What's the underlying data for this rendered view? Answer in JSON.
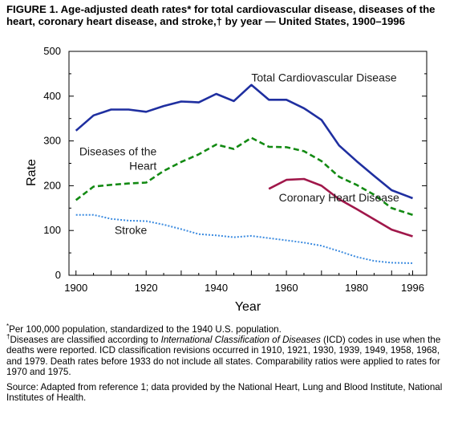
{
  "figure": {
    "title": "FIGURE 1. Age-adjusted death rates* for total cardiovascular disease, diseases of the heart, coronary heart disease, and stroke,† by year — United States, 1900–1996"
  },
  "footnotes": {
    "asterisk_mark": "*",
    "asterisk_text": "Per 100,000 population, standardized to the 1940 U.S. population.",
    "dagger_mark": "†",
    "dagger_text_before": "Diseases are classified according to ",
    "dagger_text_italic": "International Classification of Diseases",
    "dagger_text_after": " (ICD) codes in use when the deaths were reported. ICD classification revisions occurred in 1910, 1921, 1930, 1939, 1949, 1958, 1968, and 1979. Death rates before 1933 do not include all states. Comparability ratios were applied to rates for 1970 and 1975."
  },
  "source": "Source: Adapted from reference 1; data provided by the National Heart, Lung and Blood Institute, National Institutes of Health.",
  "chart_data": {
    "type": "line",
    "title": "",
    "xlabel": "Year",
    "ylabel": "Rate",
    "xlim": [
      1898,
      2000
    ],
    "ylim": [
      0,
      500
    ],
    "x_ticks": [
      1900,
      1920,
      1940,
      1960,
      1980,
      1996
    ],
    "y_ticks": [
      0,
      100,
      200,
      300,
      400,
      500
    ],
    "grid": false,
    "series": [
      {
        "name": "Total Cardiovascular Disease",
        "color": "#1f2fa0",
        "style": "solid",
        "x": [
          1900,
          1905,
          1910,
          1915,
          1920,
          1925,
          1930,
          1933,
          1935,
          1940,
          1945,
          1950,
          1955,
          1960,
          1965,
          1970,
          1975,
          1980,
          1985,
          1990,
          1996
        ],
        "y": [
          323,
          357,
          370,
          370,
          365,
          378,
          388,
          387,
          386,
          405,
          389,
          425,
          392,
          392,
          373,
          347,
          290,
          255,
          222,
          190,
          172
        ]
      },
      {
        "name": "Diseases of the Heart",
        "color": "#138a13",
        "style": "dashed",
        "x": [
          1900,
          1905,
          1910,
          1915,
          1920,
          1925,
          1930,
          1935,
          1940,
          1945,
          1950,
          1955,
          1960,
          1965,
          1970,
          1975,
          1980,
          1985,
          1990,
          1996
        ],
        "y": [
          168,
          198,
          202,
          205,
          207,
          233,
          253,
          270,
          292,
          282,
          307,
          287,
          286,
          277,
          255,
          220,
          202,
          180,
          150,
          135
        ]
      },
      {
        "name": "Coronary Heart Disease",
        "color": "#a0174a",
        "style": "solid",
        "x": [
          1955,
          1960,
          1965,
          1970,
          1975,
          1980,
          1985,
          1990,
          1996
        ],
        "y": [
          193,
          213,
          215,
          200,
          170,
          148,
          125,
          102,
          87
        ]
      },
      {
        "name": "Stroke",
        "color": "#3d8ce0",
        "style": "dotted",
        "x": [
          1900,
          1905,
          1910,
          1915,
          1920,
          1925,
          1930,
          1935,
          1940,
          1945,
          1950,
          1955,
          1960,
          1965,
          1970,
          1975,
          1980,
          1985,
          1990,
          1996
        ],
        "y": [
          135,
          135,
          126,
          122,
          121,
          113,
          103,
          92,
          89,
          85,
          88,
          83,
          78,
          73,
          66,
          54,
          41,
          32,
          28,
          27
        ]
      }
    ],
    "series_labels": [
      {
        "lines": [
          "Total Cardiovascular Disease"
        ],
        "anchor_year": 1950,
        "anchor_rate": 433,
        "align": "start"
      },
      {
        "lines": [
          "Diseases of the",
          "Heart"
        ],
        "anchor_year": 1923,
        "anchor_rate": 268,
        "align": "end"
      },
      {
        "lines": [
          "Coronary Heart Disease"
        ],
        "anchor_year": 1975,
        "anchor_rate": 165,
        "align": "middle"
      },
      {
        "lines": [
          "Stroke"
        ],
        "anchor_year": 1911,
        "anchor_rate": 92,
        "align": "start"
      }
    ]
  }
}
